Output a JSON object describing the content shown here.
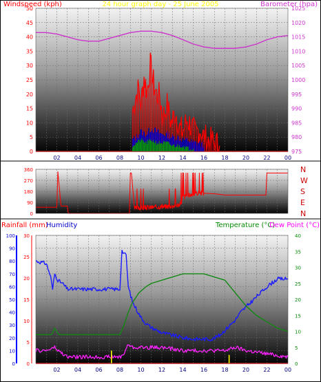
{
  "chart_data": [
    {
      "type": "line",
      "title": "24 hour graph day - 25 June 2005",
      "y_left_label": "Windspeed (kph)",
      "y_right_label": "Barometer (hpa)",
      "x_ticks": [
        "02",
        "04",
        "06",
        "08",
        "10",
        "12",
        "14",
        "16",
        "18",
        "20",
        "22",
        "00"
      ],
      "y_left_ticks": [
        0,
        5,
        10,
        15,
        20,
        25,
        30,
        35,
        40,
        45,
        50
      ],
      "y_left_range": [
        0,
        50
      ],
      "y_right_ticks": [
        975,
        980,
        985,
        990,
        995,
        1000,
        1005,
        1010,
        1015,
        1020,
        1025
      ],
      "y_right_range": [
        975,
        1025
      ],
      "grid": true,
      "colors": {
        "windspeed": "#ff0000",
        "gust": "#0000cc",
        "average": "#009900",
        "barometer": "#cc33cc",
        "title": "#ffff00"
      },
      "series": [
        {
          "name": "Barometer",
          "axis": "right",
          "x_hours": [
            0,
            1,
            2,
            3,
            4,
            5,
            6,
            7,
            8,
            9,
            10,
            11,
            12,
            13,
            14,
            15,
            16,
            17,
            18,
            19,
            20,
            21,
            22,
            23,
            24
          ],
          "values": [
            1016.5,
            1016.5,
            1016.0,
            1015.0,
            1014.0,
            1013.5,
            1013.5,
            1014.5,
            1015.5,
            1016.5,
            1017.0,
            1017.0,
            1016.5,
            1015.5,
            1014.0,
            1012.5,
            1011.5,
            1011.0,
            1011.0,
            1011.0,
            1011.5,
            1012.5,
            1014.0,
            1015.0,
            1015.5
          ]
        },
        {
          "name": "Windspeed",
          "axis": "left",
          "x_hours": [
            9.2,
            9.5,
            9.8,
            10.0,
            10.3,
            10.6,
            10.9,
            11.2,
            11.5,
            11.8,
            12.1,
            12.5,
            12.9,
            13.3,
            13.7,
            14.0,
            14.4,
            14.8,
            15.2,
            15.6,
            16.0,
            16.5,
            17.0,
            17.5
          ],
          "values": [
            14,
            19,
            22,
            16,
            26,
            21,
            30,
            24,
            20,
            19,
            12,
            16,
            10,
            14,
            8,
            7,
            11,
            9,
            6,
            8,
            5,
            4,
            3,
            2
          ]
        },
        {
          "name": "Gust",
          "axis": "left",
          "x_hours": [
            9.2,
            9.6,
            10.0,
            10.5,
            11.0,
            11.5,
            12.0,
            12.5,
            13.0,
            13.5,
            14.0,
            14.5,
            15.0,
            15.5,
            16.0
          ],
          "values": [
            4,
            5,
            7,
            6,
            8,
            7,
            6,
            6,
            5,
            5,
            4,
            4,
            3,
            3,
            2
          ]
        },
        {
          "name": "Average",
          "axis": "left",
          "x_hours": [
            9.2,
            9.6,
            10.0,
            10.5,
            11.0,
            11.5,
            12.0,
            12.5,
            13.0,
            13.5,
            14.0,
            14.5,
            15.0
          ],
          "values": [
            2,
            3,
            4,
            3,
            4,
            3,
            3,
            3,
            2,
            2,
            2,
            1,
            1
          ]
        }
      ]
    },
    {
      "type": "line",
      "y_ticks": [
        0,
        90,
        180,
        270,
        360
      ],
      "y_range": [
        0,
        360
      ],
      "compass_labels": [
        "N",
        "W",
        "S",
        "E",
        "N"
      ],
      "colors": {
        "direction": "#ff0000",
        "compass": "#cc0000"
      },
      "series": [
        {
          "name": "Wind Direction",
          "x_hours": [
            0,
            2.0,
            2.1,
            2.4,
            3.0,
            3.1,
            8.9,
            9.0,
            9.1,
            9.4,
            10,
            11,
            12,
            13,
            13.8,
            14.0,
            14.5,
            15,
            15.6,
            16,
            17,
            18,
            19,
            20,
            21,
            21.9,
            22.0,
            24
          ],
          "values": [
            50,
            50,
            340,
            60,
            60,
            0,
            0,
            330,
            330,
            40,
            45,
            50,
            55,
            60,
            75,
            130,
            150,
            155,
            170,
            165,
            160,
            150,
            150,
            150,
            150,
            150,
            330,
            330
          ]
        }
      ]
    },
    {
      "type": "line",
      "y_left_outer_label": "Rainfall (mm)",
      "y_left_inner_label": "Humidity",
      "y_right_label": "Temperature (°C)",
      "y_right_outer_label": "Dew Point (°C)",
      "x_ticks": [
        "02",
        "04",
        "06",
        "08",
        "10",
        "12",
        "14",
        "16",
        "18",
        "20",
        "22",
        "00"
      ],
      "humidity_ticks": [
        0,
        10,
        20,
        30,
        40,
        50,
        60,
        70,
        80,
        90,
        100
      ],
      "humidity_range": [
        0,
        100
      ],
      "rainfall_ticks": [
        0,
        5,
        10,
        15,
        20,
        25,
        30
      ],
      "rainfall_range": [
        0,
        30
      ],
      "temperature_ticks": [
        0,
        5,
        10,
        15,
        20,
        25,
        30,
        35,
        40
      ],
      "temperature_range": [
        0,
        40
      ],
      "colors": {
        "humidity": "#0000ff",
        "temperature": "#008800",
        "dewpoint": "#ff00ff",
        "rainfall": "#ffff00",
        "rainfall_label": "#ff0000",
        "humidity_label": "#0000cc",
        "temp_label": "#008800",
        "dew_label": "#ff00ff"
      },
      "series": [
        {
          "name": "Humidity",
          "axis": "humidity",
          "x_hours": [
            0,
            0.5,
            1.0,
            1.4,
            1.6,
            1.8,
            2.1,
            2.6,
            3.0,
            5,
            7,
            8.0,
            8.2,
            8.4,
            8.6,
            8.8,
            9.2,
            9.6,
            10,
            10.5,
            11,
            11.5,
            12,
            13,
            14,
            15,
            16,
            16.8,
            17.5,
            18,
            18.5,
            19,
            19.5,
            20,
            21,
            22,
            23,
            24
          ],
          "values": [
            80,
            79,
            78,
            68,
            58,
            70,
            65,
            62,
            58,
            58,
            58,
            58,
            88,
            86,
            84,
            60,
            48,
            42,
            36,
            31,
            28,
            26,
            24,
            22,
            20,
            19,
            19,
            19,
            22,
            26,
            30,
            34,
            40,
            44,
            52,
            60,
            66,
            66
          ]
        },
        {
          "name": "Temperature",
          "axis": "temperature",
          "x_hours": [
            0,
            1.5,
            1.8,
            2.2,
            3,
            5,
            7,
            8.0,
            8.4,
            8.8,
            9.2,
            9.8,
            10.5,
            11,
            12,
            13,
            14,
            14.5,
            15,
            16,
            17,
            18,
            19,
            20,
            21,
            22,
            23,
            24
          ],
          "values": [
            9,
            9,
            11,
            9,
            9,
            9,
            9,
            9,
            12,
            16,
            19,
            22,
            24,
            25,
            26,
            27,
            28,
            28,
            28,
            28,
            27,
            26,
            22,
            18,
            15,
            13,
            11,
            10
          ]
        },
        {
          "name": "Dew Point",
          "axis": "temperature",
          "x_hours": [
            0,
            1,
            1.8,
            2.1,
            3,
            5,
            7,
            8.0,
            8.4,
            8.8,
            9.2,
            10,
            12,
            14,
            16,
            17,
            18,
            19,
            20,
            22,
            24
          ],
          "values": [
            4,
            4,
            5,
            4,
            2,
            2,
            2,
            2,
            3,
            6,
            5,
            5,
            5,
            4,
            4,
            4,
            4,
            5,
            4,
            3,
            2
          ]
        },
        {
          "name": "Rainfall",
          "axis": "rainfall",
          "x_hours": [
            7.2,
            18.4
          ],
          "values": [
            3,
            2
          ]
        }
      ]
    }
  ]
}
